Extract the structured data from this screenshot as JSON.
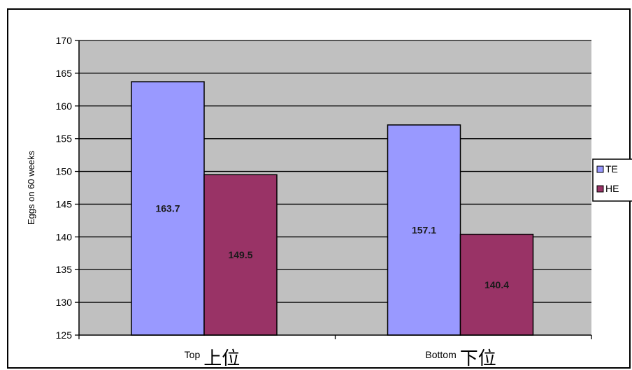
{
  "chart_data": {
    "type": "bar",
    "categories": [
      {
        "en": "Top",
        "zh": "上位"
      },
      {
        "en": "Bottom",
        "zh": "下位"
      }
    ],
    "series": [
      {
        "name": "TE",
        "values": [
          163.7,
          157.1
        ],
        "color": "#9999ff"
      },
      {
        "name": "HE",
        "values": [
          149.5,
          140.4
        ],
        "color": "#993366"
      }
    ],
    "ylabel": "Eggs on 60 weeks",
    "ylim": [
      125,
      170
    ],
    "yticks": [
      125,
      130,
      135,
      140,
      145,
      150,
      155,
      160,
      165,
      170
    ],
    "grid": true,
    "legend_position": "right",
    "plot_background": "#c0c0c0"
  }
}
